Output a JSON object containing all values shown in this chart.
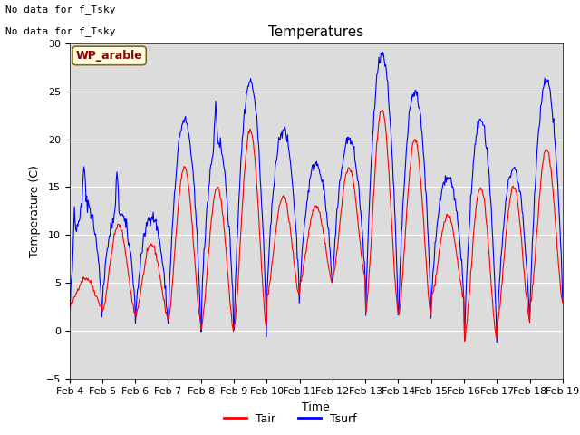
{
  "title": "Temperatures",
  "xlabel": "Time",
  "ylabel": "Temperature (C)",
  "ylim": [
    -5,
    30
  ],
  "yticks": [
    -5,
    0,
    5,
    10,
    15,
    20,
    25,
    30
  ],
  "x_labels": [
    "Feb 4",
    "Feb 5",
    "Feb 6",
    "Feb 7",
    "Feb 8",
    "Feb 9",
    "Feb 10",
    "Feb 11",
    "Feb 12",
    "Feb 13",
    "Feb 14",
    "Feb 15",
    "Feb 16",
    "Feb 17",
    "Feb 18",
    "Feb 19"
  ],
  "no_data_text1": "No data for f_Tsky",
  "no_data_text2": "No data for f_Tsky",
  "wp_label": "WP_arable",
  "legend_entries": [
    "Tair",
    "Tsurf"
  ],
  "tair_color": "#ff0000",
  "tsurf_color": "#0000ff",
  "bg_color": "#dcdcdc",
  "title_fontsize": 11,
  "axis_fontsize": 9,
  "tick_fontsize": 8,
  "nodata_fontsize": 8,
  "wp_fontsize": 9,
  "legend_fontsize": 9
}
